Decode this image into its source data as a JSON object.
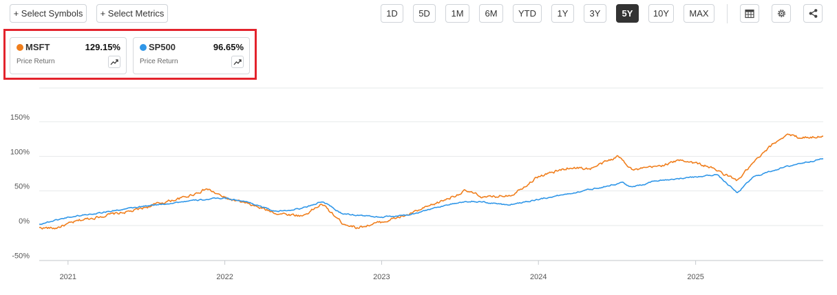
{
  "toolbar": {
    "select_symbols": "+ Select Symbols",
    "select_metrics": "+ Select Metrics",
    "ranges": [
      "1D",
      "5D",
      "1M",
      "6M",
      "YTD",
      "1Y",
      "3Y",
      "5Y",
      "10Y",
      "MAX"
    ],
    "active_range": "5Y",
    "icons": [
      "table-icon",
      "gear-icon",
      "share-icon"
    ]
  },
  "cards": [
    {
      "symbol": "MSFT",
      "value": "129.15%",
      "metric": "Price Return",
      "color": "#f07e1c"
    },
    {
      "symbol": "SP500",
      "value": "96.65%",
      "metric": "Price Return",
      "color": "#2f96e8"
    }
  ],
  "colors": {
    "highlight": "#e3232c",
    "active_range_bg": "#333333"
  },
  "chart_data": {
    "type": "line",
    "ylim": [
      -50,
      150
    ],
    "yticks": [
      -50,
      0,
      50,
      100,
      150
    ],
    "yticklabels": [
      "-50%",
      "0%",
      "50%",
      "100%",
      "150%"
    ],
    "xticklabels": [
      "2021",
      "2022",
      "2023",
      "2024",
      "2025"
    ],
    "grid": true,
    "series": [
      {
        "name": "MSFT",
        "color": "#f07e1c",
        "x": [
          "2020-10-26",
          "2020-12-01",
          "2021-02-01",
          "2021-04-01",
          "2021-06-01",
          "2021-08-01",
          "2021-10-01",
          "2021-11-20",
          "2022-01-01",
          "2022-03-01",
          "2022-05-01",
          "2022-07-01",
          "2022-08-15",
          "2022-10-01",
          "2022-11-05",
          "2023-01-01",
          "2023-03-01",
          "2023-05-01",
          "2023-07-15",
          "2023-09-01",
          "2023-11-01",
          "2024-01-01",
          "2024-03-15",
          "2024-05-01",
          "2024-07-05",
          "2024-08-10",
          "2024-10-01",
          "2024-12-01",
          "2025-02-01",
          "2025-04-08",
          "2025-05-15",
          "2025-07-01",
          "2025-08-01",
          "2025-09-01",
          "2025-10-25"
        ],
        "y": [
          -3,
          -4,
          8,
          15,
          21,
          32,
          41,
          53,
          40,
          30,
          18,
          14,
          31,
          4,
          -3,
          5,
          15,
          30,
          50,
          40,
          45,
          71,
          84,
          82,
          100,
          80,
          85,
          95,
          85,
          65,
          90,
          118,
          132,
          127,
          129
        ]
      },
      {
        "name": "SP500",
        "color": "#2f96e8",
        "x": [
          "2020-10-26",
          "2021-01-01",
          "2021-04-01",
          "2021-07-01",
          "2021-10-01",
          "2022-01-01",
          "2022-03-01",
          "2022-05-01",
          "2022-07-01",
          "2022-08-15",
          "2022-10-01",
          "2023-01-01",
          "2023-03-01",
          "2023-06-01",
          "2023-08-01",
          "2023-10-25",
          "2024-01-01",
          "2024-03-28",
          "2024-07-15",
          "2024-08-05",
          "2024-10-01",
          "2025-01-01",
          "2025-02-19",
          "2025-04-08",
          "2025-05-15",
          "2025-07-01",
          "2025-09-01",
          "2025-10-25"
        ],
        "y": [
          2,
          12,
          20,
          28,
          35,
          40,
          33,
          20,
          25,
          35,
          17,
          12,
          15,
          30,
          35,
          30,
          38,
          48,
          62,
          55,
          65,
          70,
          74,
          47,
          70,
          80,
          90,
          96.65
        ]
      }
    ]
  }
}
